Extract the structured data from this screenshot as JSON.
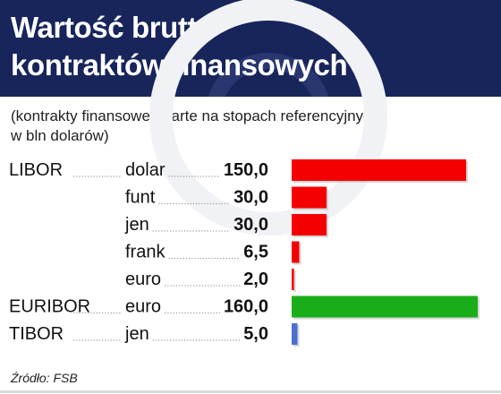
{
  "header": {
    "title_lines": [
      "Wartość brutto",
      "kontraktów finansowych"
    ]
  },
  "subtitle_lines": [
    "(kontrakty finansowe oparte na stopach referencyjnych",
    "w bln dolarów)"
  ],
  "source": "Źródło: FSB",
  "colors": {
    "header_bg": "#18255b",
    "libor": "#f40000",
    "euribor": "#1aad1a",
    "tibor": "#4a6fd0",
    "leader": "#9a9a9a"
  },
  "chart_data": {
    "type": "bar",
    "orientation": "horizontal",
    "title": "Wartość brutto kontraktów finansowych",
    "subtitle": "(kontrakty finansowe oparte na stopach referencyjnych w bln dolarów)",
    "unit": "bln dolarów",
    "xlim": [
      0,
      160
    ],
    "grid": false,
    "rows": [
      {
        "group": "LIBOR",
        "currency": "dolar",
        "label": "150,0",
        "value": 150.0,
        "color_key": "libor"
      },
      {
        "group": "",
        "currency": "funt",
        "label": "30,0",
        "value": 30.0,
        "color_key": "libor"
      },
      {
        "group": "",
        "currency": "jen",
        "label": "30,0",
        "value": 30.0,
        "color_key": "libor"
      },
      {
        "group": "",
        "currency": "frank",
        "label": "6,5",
        "value": 6.5,
        "color_key": "libor"
      },
      {
        "group": "",
        "currency": "euro",
        "label": "2,0",
        "value": 2.0,
        "color_key": "libor"
      },
      {
        "group": "EURIBOR",
        "currency": "euro",
        "label": "160,0",
        "value": 160.0,
        "color_key": "euribor"
      },
      {
        "group": "TIBOR",
        "currency": "jen",
        "label": "5,0",
        "value": 5.0,
        "color_key": "tibor"
      }
    ]
  }
}
